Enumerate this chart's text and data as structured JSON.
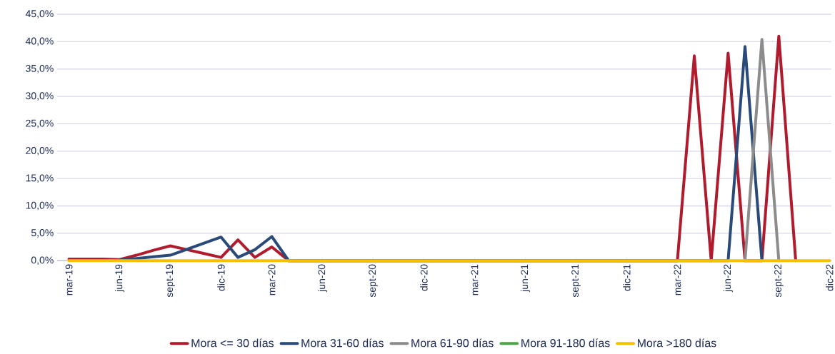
{
  "chart_data": {
    "type": "line",
    "categories": [
      "mar-19",
      null,
      null,
      "jun-19",
      null,
      null,
      "sept-19",
      null,
      null,
      "dic-19",
      null,
      null,
      "mar-20",
      null,
      null,
      "jun-20",
      null,
      null,
      "sept-20",
      null,
      null,
      "dic-20",
      null,
      null,
      "mar-21",
      null,
      null,
      "jun-21",
      null,
      null,
      "sept-21",
      null,
      null,
      "dic-21",
      null,
      null,
      "mar-22",
      null,
      null,
      "jun-22",
      null,
      null,
      "sept-22",
      null,
      null,
      "dic-22"
    ],
    "series": [
      {
        "name": "Mora <= 30 días",
        "color": "#b01c2e",
        "values": [
          0.3,
          0.3,
          0.3,
          0.2,
          1.0,
          1.9,
          2.7,
          2.0,
          1.3,
          0.6,
          3.8,
          0.6,
          2.5,
          0,
          null,
          null,
          null,
          null,
          null,
          null,
          null,
          null,
          null,
          null,
          null,
          null,
          null,
          null,
          null,
          null,
          null,
          null,
          null,
          null,
          null,
          null,
          0,
          37.4,
          0,
          37.9,
          0,
          0,
          41.0,
          0,
          null,
          null
        ]
      },
      {
        "name": "Mora 31-60 días",
        "color": "#2a4a7a",
        "values": [
          null,
          null,
          null,
          0.1,
          0.4,
          0.7,
          1.0,
          2.1,
          3.2,
          4.3,
          0.6,
          2.0,
          4.4,
          0,
          null,
          null,
          null,
          null,
          null,
          null,
          null,
          null,
          null,
          null,
          null,
          null,
          null,
          null,
          null,
          null,
          null,
          null,
          null,
          null,
          null,
          null,
          null,
          null,
          null,
          0,
          39.1,
          0,
          null,
          null,
          null,
          null
        ]
      },
      {
        "name": "Mora 61-90 días",
        "color": "#8c8c8c",
        "values": [
          null,
          null,
          null,
          null,
          null,
          null,
          null,
          null,
          null,
          null,
          null,
          null,
          null,
          null,
          null,
          null,
          null,
          null,
          null,
          null,
          null,
          null,
          null,
          null,
          null,
          null,
          null,
          null,
          null,
          null,
          null,
          null,
          null,
          null,
          null,
          null,
          null,
          null,
          null,
          null,
          0,
          40.4,
          0,
          null,
          null,
          null
        ]
      },
      {
        "name": "Mora 91-180 días",
        "color": "#4ca64c",
        "values": [
          null,
          null,
          null,
          null,
          null,
          null,
          null,
          null,
          null,
          null,
          null,
          null,
          null,
          null,
          null,
          null,
          null,
          null,
          null,
          null,
          null,
          null,
          null,
          null,
          null,
          null,
          null,
          null,
          null,
          null,
          null,
          null,
          null,
          null,
          null,
          null,
          null,
          null,
          null,
          null,
          null,
          null,
          null,
          null,
          null,
          null
        ]
      },
      {
        "name": "Mora >180 días",
        "color": "#f5c000",
        "values": [
          0,
          0,
          0,
          0,
          0,
          0,
          0,
          0,
          0,
          0,
          0,
          0,
          0,
          0,
          0,
          0,
          0,
          0,
          0,
          0,
          0,
          0,
          0,
          0,
          0,
          0,
          0,
          0,
          0,
          0,
          0,
          0,
          0,
          0,
          0,
          0,
          0,
          0,
          0,
          0,
          0,
          0,
          0,
          0,
          0,
          0
        ]
      }
    ],
    "ylim": [
      0,
      45
    ],
    "yticks": [
      {
        "value": 0,
        "label": "0,0%"
      },
      {
        "value": 5,
        "label": "5,0%"
      },
      {
        "value": 10,
        "label": "10,0%"
      },
      {
        "value": 15,
        "label": "15,0%"
      },
      {
        "value": 20,
        "label": "20,0%"
      },
      {
        "value": 25,
        "label": "25,0%"
      },
      {
        "value": 30,
        "label": "30,0%"
      },
      {
        "value": 35,
        "label": "35,0%"
      },
      {
        "value": 40,
        "label": "40,0%"
      },
      {
        "value": 45,
        "label": "45,0%"
      }
    ],
    "grid": "y",
    "legend": "bottom",
    "marker": "none",
    "line_style": "solid"
  }
}
